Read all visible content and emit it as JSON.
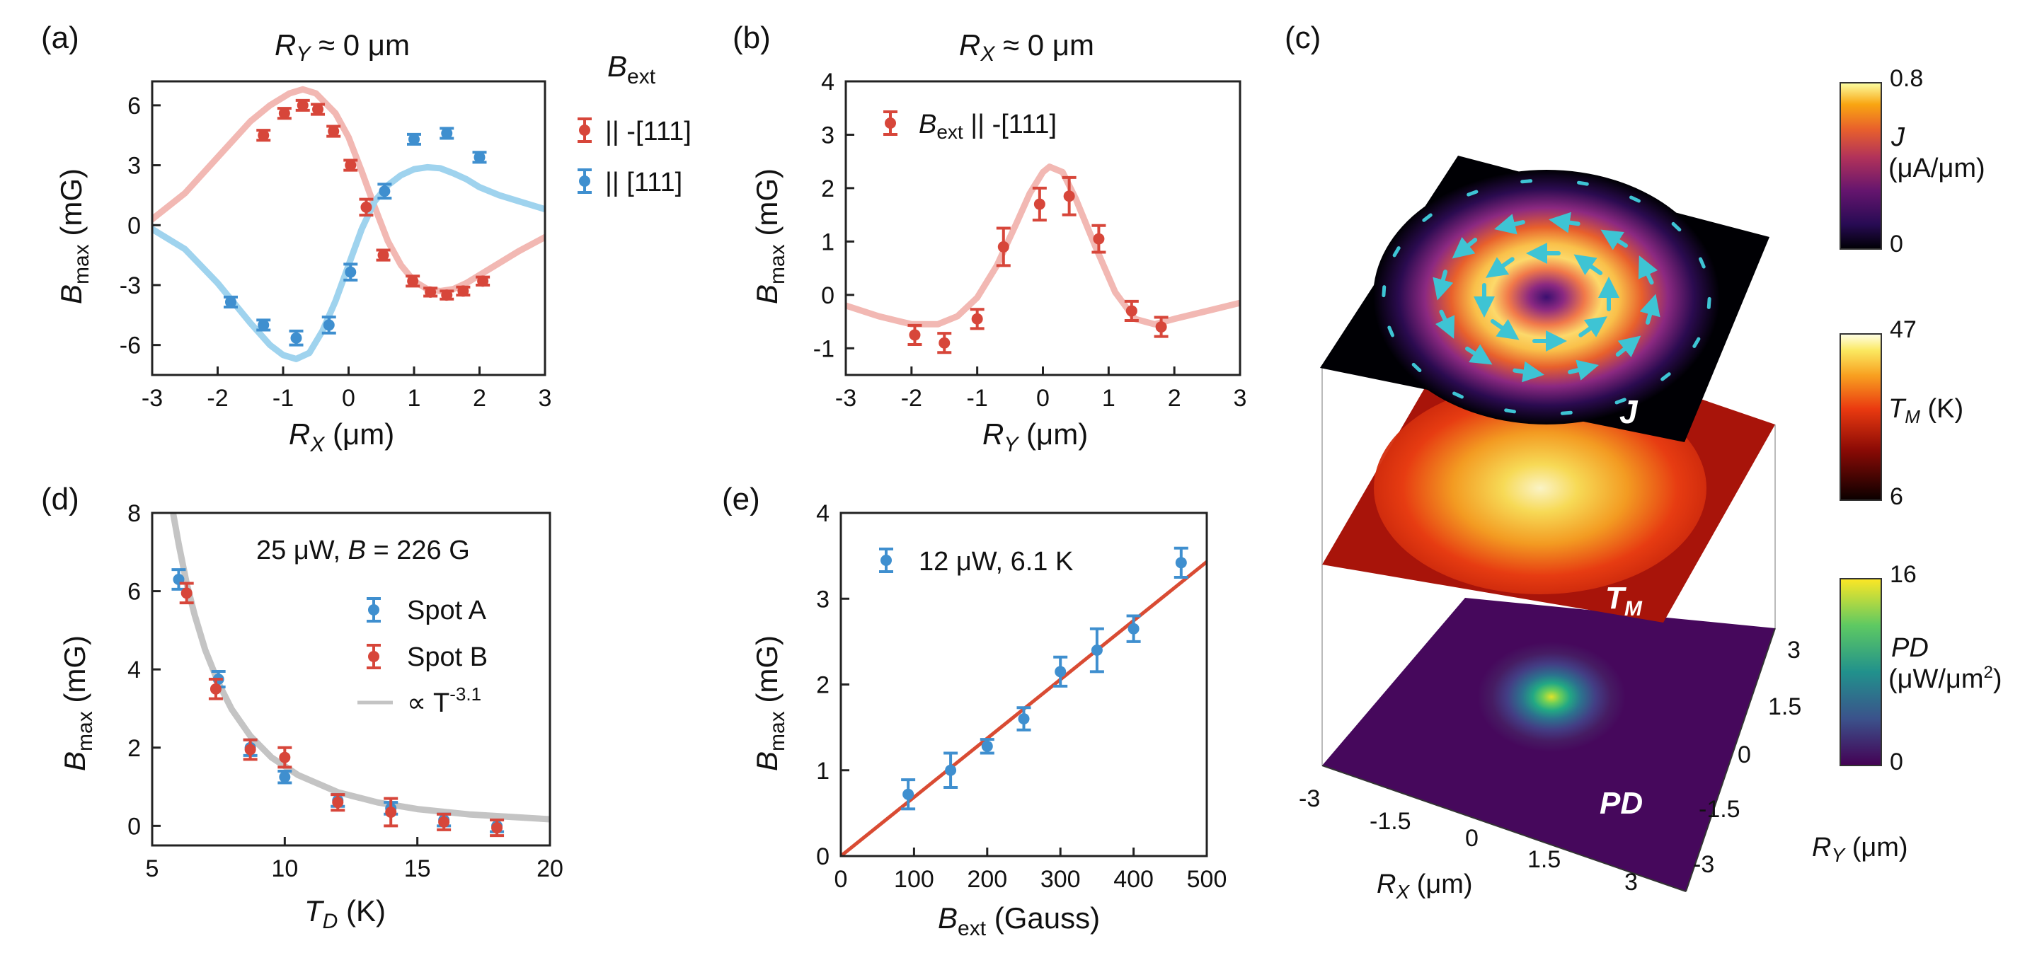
{
  "figure": {
    "panel_labels": [
      "(a)",
      "(b)",
      "(c)",
      "(d)",
      "(e)"
    ]
  },
  "colors": {
    "red": "#d7463a",
    "blue": "#3f8fcf",
    "red_fit": "#f2b8b3",
    "blue_fit": "#9fd3ee",
    "gray_fit": "#c4c4c4",
    "line_e": "#d94b33"
  },
  "chart_data": [
    {
      "id": "a",
      "type": "scatter",
      "title_main": "R",
      "title_sub": "Y",
      "title_rest": " ≈ 0 μm",
      "xlabel_main": "R",
      "xlabel_sub": "X",
      "xlabel_rest": " (μm)",
      "ylabel_main": "B",
      "ylabel_sub": "max",
      "ylabel_rest": " (mG)",
      "xlim": [
        -3,
        3
      ],
      "ylim": [
        -7.5,
        7.2
      ],
      "xticks": [
        -3,
        -2,
        -1,
        0,
        1,
        2,
        3
      ],
      "xtick_labels": [
        "-3",
        "-2",
        "-1",
        "0",
        "1",
        "2",
        "3"
      ],
      "yticks": [
        -6,
        -3,
        0,
        3,
        6
      ],
      "ytick_labels": [
        "-6",
        "-3",
        "0",
        "3",
        "6"
      ],
      "legend_title_main": "B",
      "legend_title_sub": "ext",
      "series": [
        {
          "name": "|| -[111]",
          "color": "#d7463a",
          "x": [
            -1.3,
            -0.98,
            -0.7,
            -0.47,
            -0.23,
            0.03,
            0.27,
            0.53,
            0.98,
            1.25,
            1.5,
            1.75,
            2.05
          ],
          "y": [
            4.5,
            5.6,
            6.0,
            5.8,
            4.7,
            3.0,
            0.9,
            -1.5,
            -2.8,
            -3.35,
            -3.5,
            -3.3,
            -2.8
          ],
          "err": [
            0.25,
            0.25,
            0.25,
            0.25,
            0.25,
            0.25,
            0.4,
            0.25,
            0.25,
            0.2,
            0.2,
            0.2,
            0.2
          ]
        },
        {
          "name": "|| [111]",
          "color": "#3f8fcf",
          "x": [
            -1.8,
            -1.3,
            -0.8,
            -0.3,
            0.03,
            0.55,
            1.0,
            1.5,
            2.0
          ],
          "y": [
            -3.85,
            -5.0,
            -5.65,
            -5.0,
            -2.35,
            1.7,
            4.3,
            4.6,
            3.4
          ],
          "err": [
            0.25,
            0.25,
            0.35,
            0.4,
            0.4,
            0.35,
            0.25,
            0.25,
            0.25
          ]
        }
      ],
      "fits": [
        {
          "color": "#f2b8b3",
          "x": [
            -3,
            -2.5,
            -2,
            -1.5,
            -1.2,
            -0.9,
            -0.7,
            -0.5,
            -0.2,
            0,
            0.2,
            0.4,
            0.6,
            0.8,
            1.0,
            1.2,
            1.4,
            1.6,
            1.8,
            2.0,
            2.3,
            2.6,
            3.0
          ],
          "y": [
            0.3,
            1.6,
            3.4,
            5.2,
            6.0,
            6.6,
            6.8,
            6.6,
            5.6,
            4.4,
            2.7,
            0.9,
            -0.8,
            -2.0,
            -2.8,
            -3.2,
            -3.3,
            -3.2,
            -2.9,
            -2.5,
            -1.9,
            -1.3,
            -0.6
          ]
        },
        {
          "color": "#9fd3ee",
          "x": [
            -3,
            -2.5,
            -2,
            -1.5,
            -1.2,
            -1.0,
            -0.8,
            -0.6,
            -0.4,
            -0.2,
            0,
            0.2,
            0.4,
            0.6,
            0.8,
            1.0,
            1.2,
            1.4,
            1.6,
            1.8,
            2.0,
            2.3,
            2.6,
            3.0
          ],
          "y": [
            -0.2,
            -1.2,
            -2.9,
            -4.9,
            -6.0,
            -6.5,
            -6.7,
            -6.4,
            -5.3,
            -3.8,
            -2.0,
            -0.2,
            1.2,
            2.0,
            2.5,
            2.8,
            2.9,
            2.85,
            2.6,
            2.3,
            1.9,
            1.5,
            1.2,
            0.8
          ]
        }
      ]
    },
    {
      "id": "b",
      "type": "scatter",
      "title_main": "R",
      "title_sub": "X",
      "title_rest": " ≈ 0 μm",
      "xlabel_main": "R",
      "xlabel_sub": "Y",
      "xlabel_rest": " (μm)",
      "ylabel_main": "B",
      "ylabel_sub": "max",
      "ylabel_rest": " (mG)",
      "xlim": [
        -3,
        3
      ],
      "ylim": [
        -1.5,
        4
      ],
      "xticks": [
        -3,
        -2,
        -1,
        0,
        1,
        2,
        3
      ],
      "xtick_labels": [
        "-3",
        "-2",
        "-1",
        "0",
        "1",
        "2",
        "3"
      ],
      "yticks": [
        -1,
        0,
        1,
        2,
        3,
        4
      ],
      "ytick_labels": [
        "-1",
        "0",
        "1",
        "2",
        "3",
        "4"
      ],
      "series": [
        {
          "name": "|| -[111]",
          "color": "#d7463a",
          "x": [
            -1.95,
            -1.5,
            -1.0,
            -0.6,
            -0.05,
            0.4,
            0.85,
            1.35,
            1.8
          ],
          "y": [
            -0.75,
            -0.9,
            -0.45,
            0.9,
            1.7,
            1.85,
            1.05,
            -0.3,
            -0.6
          ],
          "err": [
            0.18,
            0.18,
            0.18,
            0.35,
            0.3,
            0.35,
            0.25,
            0.18,
            0.18
          ]
        }
      ],
      "fits": [
        {
          "color": "#f2b8b3",
          "x": [
            -3,
            -2.5,
            -2.0,
            -1.6,
            -1.3,
            -1.0,
            -0.7,
            -0.4,
            -0.2,
            0,
            0.1,
            0.3,
            0.5,
            0.8,
            1.1,
            1.4,
            1.7,
            2.0,
            2.5,
            3.0
          ],
          "y": [
            -0.2,
            -0.4,
            -0.55,
            -0.55,
            -0.4,
            -0.05,
            0.55,
            1.35,
            1.9,
            2.3,
            2.4,
            2.3,
            1.8,
            0.9,
            0.05,
            -0.45,
            -0.55,
            -0.45,
            -0.3,
            -0.15
          ]
        }
      ],
      "legend": [
        {
          "label_main": "B",
          "label_sub": "ext",
          "label_rest": " || -[111]"
        }
      ]
    },
    {
      "id": "d",
      "type": "scatter",
      "annotation": "25 μW, ",
      "annotation_b": "B",
      "annotation_rest": " = 226 G",
      "xlabel_main": "T",
      "xlabel_sub": "D",
      "xlabel_rest": " (K)",
      "ylabel_main": "B",
      "ylabel_sub": "max",
      "ylabel_rest": " (mG)",
      "xlim": [
        5,
        20
      ],
      "ylim": [
        -0.5,
        8
      ],
      "xticks": [
        5,
        10,
        15,
        20
      ],
      "xtick_labels": [
        "5",
        "10",
        "15",
        "20"
      ],
      "yticks": [
        0,
        2,
        4,
        6,
        8
      ],
      "ytick_labels": [
        "0",
        "2",
        "4",
        "6",
        "8"
      ],
      "series": [
        {
          "name": "Spot A",
          "color": "#3f8fcf",
          "x": [
            6.0,
            7.5,
            8.7,
            10.0,
            12.0,
            14.0,
            16.0,
            18.0
          ],
          "y": [
            6.3,
            3.75,
            2.0,
            1.25,
            0.65,
            0.45,
            0.15,
            0.0
          ],
          "err": [
            0.25,
            0.2,
            0.2,
            0.15,
            0.15,
            0.15,
            0.15,
            0.15
          ]
        },
        {
          "name": "Spot B",
          "color": "#d7463a",
          "x": [
            6.3,
            7.4,
            8.7,
            10.0,
            12.0,
            14.0,
            16.0,
            18.0
          ],
          "y": [
            5.95,
            3.5,
            1.95,
            1.75,
            0.6,
            0.35,
            0.1,
            -0.05
          ],
          "err": [
            0.25,
            0.25,
            0.25,
            0.25,
            0.2,
            0.35,
            0.2,
            0.2
          ]
        }
      ],
      "fits": [
        {
          "name": "∝ T",
          "name_sup": "-3.1",
          "color": "#c4c4c4",
          "x": [
            5.8,
            6.0,
            6.3,
            6.6,
            7.0,
            7.5,
            8.0,
            8.7,
            9.5,
            10.5,
            12.0,
            13.5,
            15.0,
            17.0,
            20.0
          ],
          "y": [
            7.95,
            7.2,
            6.2,
            5.4,
            4.5,
            3.65,
            2.98,
            2.3,
            1.75,
            1.3,
            0.86,
            0.6,
            0.43,
            0.29,
            0.17
          ]
        }
      ]
    },
    {
      "id": "e",
      "type": "scatter",
      "xlabel_main": "B",
      "xlabel_sub": "ext",
      "xlabel_rest": " (Gauss)",
      "ylabel_main": "B",
      "ylabel_sub": "max",
      "ylabel_rest": " (mG)",
      "xlim": [
        0,
        500
      ],
      "ylim": [
        0,
        4
      ],
      "xticks": [
        0,
        100,
        200,
        300,
        400,
        500
      ],
      "xtick_labels": [
        "0",
        "100",
        "200",
        "300",
        "400",
        "500"
      ],
      "yticks": [
        0,
        1,
        2,
        3,
        4
      ],
      "ytick_labels": [
        "0",
        "1",
        "2",
        "3",
        "4"
      ],
      "series": [
        {
          "name": "12 μW, 6.1 K",
          "color": "#3f8fcf",
          "x": [
            92,
            150,
            200,
            250,
            300,
            350,
            400,
            465
          ],
          "y": [
            0.72,
            1.0,
            1.28,
            1.6,
            2.15,
            2.4,
            2.65,
            3.42
          ],
          "err": [
            0.17,
            0.2,
            0.08,
            0.13,
            0.17,
            0.25,
            0.15,
            0.17
          ]
        }
      ],
      "fits": [
        {
          "color": "#d94b33",
          "x": [
            0,
            500
          ],
          "y": [
            0,
            3.43
          ]
        }
      ]
    },
    {
      "id": "c",
      "type": "heatmap",
      "layers": [
        "J",
        "T",
        "PD"
      ],
      "layer_labels": [
        {
          "main": "J",
          "sub": ""
        },
        {
          "main": "T",
          "sub": "M"
        },
        {
          "main": "PD",
          "sub": ""
        }
      ],
      "axis_ry": {
        "label_main": "R",
        "label_sub": "Y",
        "label_rest": " (μm)",
        "ticks": [
          "3",
          "1.5",
          "0",
          "-1.5",
          "-3"
        ]
      },
      "axis_rx": {
        "label_main": "R",
        "label_sub": "X",
        "label_rest": " (μm)",
        "ticks": [
          "-3",
          "-1.5",
          "0",
          "1.5",
          "3"
        ]
      },
      "colorbars": [
        {
          "name": "J",
          "unit": "(μA/μm)",
          "max": "0.8",
          "min": "0"
        },
        {
          "name": "T",
          "name_sub": "M",
          "unit": " (K)",
          "max": "47",
          "min": "6"
        },
        {
          "name": "PD",
          "unit": "(μW/μm",
          "unit_sup": "2",
          "unit_end": ")",
          "max": "16",
          "min": "0"
        }
      ]
    }
  ]
}
